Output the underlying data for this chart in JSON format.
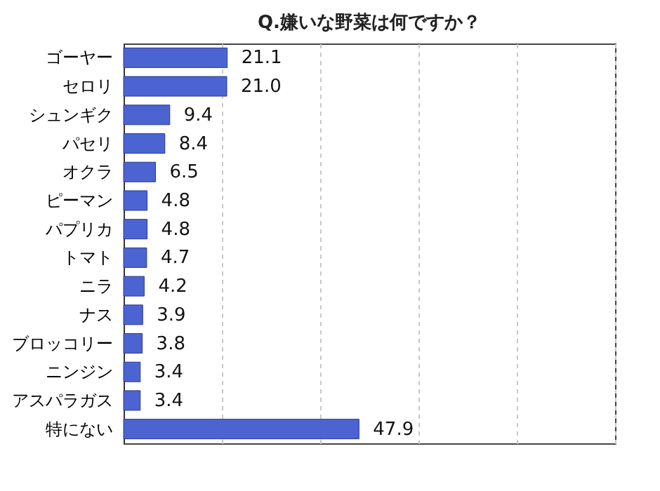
{
  "chart_data": {
    "type": "bar",
    "orientation": "horizontal",
    "title": "Q.嫌いな野菜は何ですか？",
    "categories": [
      "ゴーヤー",
      "セロリ",
      "シュンギク",
      "パセリ",
      "オクラ",
      "ピーマン",
      "パプリカ",
      "トマト",
      "ニラ",
      "ナス",
      "ブロッコリー",
      "ニンジン",
      "アスパラガス",
      "特にない"
    ],
    "values": [
      21.1,
      21.0,
      9.4,
      8.4,
      6.5,
      4.8,
      4.8,
      4.7,
      4.2,
      3.9,
      3.8,
      3.4,
      3.4,
      47.9
    ],
    "color": "#4c63d2",
    "xlim": [
      0,
      100
    ],
    "xticks": [
      {
        "value": 0,
        "label": null
      },
      {
        "value": 20,
        "label": null
      },
      {
        "value": 40,
        "label": null
      },
      {
        "value": 60,
        "label": null
      },
      {
        "value": 80,
        "label": null
      },
      {
        "value": 100,
        "label": null
      }
    ],
    "value_labels": [
      "21.1",
      "21.0",
      "9.4",
      "8.4",
      "6.5",
      "4.8",
      "4.8",
      "4.7",
      "4.2",
      "3.9",
      "3.8",
      "3.4",
      "3.4",
      "47.9"
    ],
    "grid": "x"
  }
}
